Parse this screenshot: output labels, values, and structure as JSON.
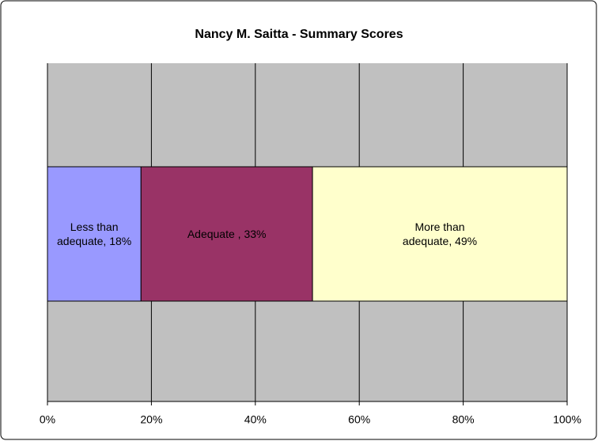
{
  "chart_data": {
    "type": "stacked_bar_horizontal",
    "title": "Nancy M. Saitta - Summary Scores",
    "series": [
      {
        "name": "Less than adequate",
        "color": "#9999ff",
        "values": [
          18
        ],
        "value_labels": [
          "Less than adequate, 18%"
        ]
      },
      {
        "name": "Adequate ",
        "color": "#993366",
        "values": [
          33
        ],
        "value_labels": [
          "Adequate , 33%"
        ]
      },
      {
        "name": "More than adequate",
        "color": "#ffffcc",
        "values": [
          49
        ],
        "value_labels": [
          "More than adequate, 49%"
        ]
      }
    ],
    "xlim": [
      0,
      100
    ],
    "xticks": [
      {
        "value": 0,
        "label": "0%"
      },
      {
        "value": 20,
        "label": "20%"
      },
      {
        "value": 40,
        "label": "40%"
      },
      {
        "value": 60,
        "label": "60%"
      },
      {
        "value": 80,
        "label": "80%"
      },
      {
        "value": 100,
        "label": "100%"
      }
    ],
    "grid": true,
    "plot_color": "#c0c0c0"
  }
}
